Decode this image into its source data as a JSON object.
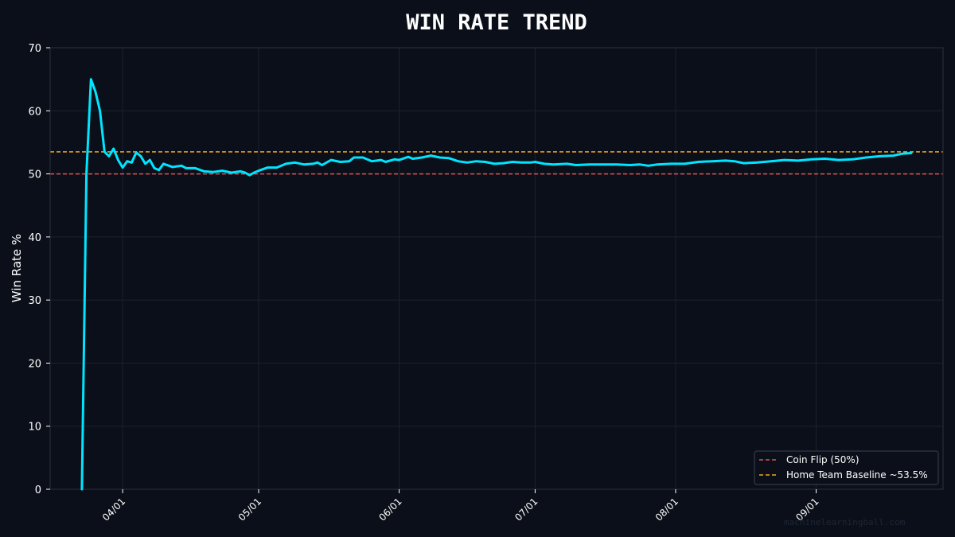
{
  "chart_data": {
    "type": "line",
    "title": "WIN RATE TREND",
    "xlabel": "",
    "ylabel": "Win Rate %",
    "ylim": [
      0,
      70
    ],
    "yticks": [
      0,
      10,
      20,
      30,
      40,
      50,
      60,
      70
    ],
    "xlim": [
      "2025-03-16",
      "2025-09-29"
    ],
    "xticks": [
      {
        "date": "2025-04-01",
        "label": "04/01"
      },
      {
        "date": "2025-05-01",
        "label": "05/01"
      },
      {
        "date": "2025-06-01",
        "label": "06/01"
      },
      {
        "date": "2025-07-01",
        "label": "07/01"
      },
      {
        "date": "2025-08-01",
        "label": "08/01"
      },
      {
        "date": "2025-09-01",
        "label": "09/01"
      }
    ],
    "grid": true,
    "legend_position": "bottom-right",
    "series": [
      {
        "color": "#00e5ff",
        "points": [
          [
            "2025-03-23",
            0.0
          ],
          [
            "2025-03-24",
            50.0
          ],
          [
            "2025-03-25",
            65.0
          ],
          [
            "2025-03-26",
            63.0
          ],
          [
            "2025-03-27",
            60.0
          ],
          [
            "2025-03-28",
            53.5
          ],
          [
            "2025-03-29",
            52.8
          ],
          [
            "2025-03-30",
            54.0
          ],
          [
            "2025-03-31",
            52.2
          ],
          [
            "2025-04-01",
            51.0
          ],
          [
            "2025-04-02",
            52.0
          ],
          [
            "2025-04-03",
            51.8
          ],
          [
            "2025-04-04",
            53.4
          ],
          [
            "2025-04-05",
            52.8
          ],
          [
            "2025-04-06",
            51.6
          ],
          [
            "2025-04-07",
            52.2
          ],
          [
            "2025-04-08",
            50.9
          ],
          [
            "2025-04-09",
            50.6
          ],
          [
            "2025-04-10",
            51.6
          ],
          [
            "2025-04-12",
            51.1
          ],
          [
            "2025-04-14",
            51.3
          ],
          [
            "2025-04-15",
            50.9
          ],
          [
            "2025-04-17",
            50.9
          ],
          [
            "2025-04-19",
            50.4
          ],
          [
            "2025-04-21",
            50.3
          ],
          [
            "2025-04-23",
            50.5
          ],
          [
            "2025-04-25",
            50.2
          ],
          [
            "2025-04-27",
            50.4
          ],
          [
            "2025-04-28",
            50.2
          ],
          [
            "2025-04-29",
            49.8
          ],
          [
            "2025-04-30",
            50.2
          ],
          [
            "2025-05-01",
            50.5
          ],
          [
            "2025-05-03",
            51.0
          ],
          [
            "2025-05-05",
            51.0
          ],
          [
            "2025-05-07",
            51.6
          ],
          [
            "2025-05-09",
            51.8
          ],
          [
            "2025-05-11",
            51.5
          ],
          [
            "2025-05-13",
            51.6
          ],
          [
            "2025-05-14",
            51.8
          ],
          [
            "2025-05-15",
            51.4
          ],
          [
            "2025-05-17",
            52.2
          ],
          [
            "2025-05-19",
            51.9
          ],
          [
            "2025-05-21",
            52.0
          ],
          [
            "2025-05-22",
            52.6
          ],
          [
            "2025-05-24",
            52.6
          ],
          [
            "2025-05-26",
            52.0
          ],
          [
            "2025-05-28",
            52.2
          ],
          [
            "2025-05-29",
            51.9
          ],
          [
            "2025-05-31",
            52.3
          ],
          [
            "2025-06-01",
            52.2
          ],
          [
            "2025-06-03",
            52.7
          ],
          [
            "2025-06-04",
            52.4
          ],
          [
            "2025-06-06",
            52.6
          ],
          [
            "2025-06-08",
            52.9
          ],
          [
            "2025-06-10",
            52.6
          ],
          [
            "2025-06-12",
            52.5
          ],
          [
            "2025-06-14",
            52.0
          ],
          [
            "2025-06-16",
            51.8
          ],
          [
            "2025-06-18",
            52.0
          ],
          [
            "2025-06-20",
            51.9
          ],
          [
            "2025-06-22",
            51.6
          ],
          [
            "2025-06-24",
            51.7
          ],
          [
            "2025-06-26",
            51.9
          ],
          [
            "2025-06-28",
            51.8
          ],
          [
            "2025-06-30",
            51.8
          ],
          [
            "2025-07-01",
            51.9
          ],
          [
            "2025-07-03",
            51.6
          ],
          [
            "2025-07-05",
            51.5
          ],
          [
            "2025-07-08",
            51.6
          ],
          [
            "2025-07-10",
            51.4
          ],
          [
            "2025-07-13",
            51.5
          ],
          [
            "2025-07-16",
            51.5
          ],
          [
            "2025-07-19",
            51.5
          ],
          [
            "2025-07-22",
            51.4
          ],
          [
            "2025-07-24",
            51.5
          ],
          [
            "2025-07-26",
            51.3
          ],
          [
            "2025-07-28",
            51.5
          ],
          [
            "2025-07-31",
            51.6
          ],
          [
            "2025-08-03",
            51.6
          ],
          [
            "2025-08-06",
            51.9
          ],
          [
            "2025-08-09",
            52.0
          ],
          [
            "2025-08-12",
            52.1
          ],
          [
            "2025-08-14",
            52.0
          ],
          [
            "2025-08-16",
            51.7
          ],
          [
            "2025-08-19",
            51.8
          ],
          [
            "2025-08-22",
            52.0
          ],
          [
            "2025-08-25",
            52.2
          ],
          [
            "2025-08-28",
            52.1
          ],
          [
            "2025-08-31",
            52.3
          ],
          [
            "2025-09-03",
            52.4
          ],
          [
            "2025-09-06",
            52.2
          ],
          [
            "2025-09-09",
            52.3
          ],
          [
            "2025-09-12",
            52.6
          ],
          [
            "2025-09-15",
            52.8
          ],
          [
            "2025-09-18",
            52.9
          ],
          [
            "2025-09-20",
            53.2
          ],
          [
            "2025-09-22",
            53.3
          ]
        ]
      }
    ],
    "reference_lines": [
      {
        "label": "Coin Flip (50%)",
        "y": 50,
        "color": "#e05252"
      },
      {
        "label": "Home Team Baseline ~53.5%",
        "y": 53.5,
        "color": "#f5a623"
      }
    ],
    "colors": {
      "background": "#0b0f19",
      "text": "#ffffff",
      "grid": "#1b2130",
      "axis": "#2b3140",
      "legend_bg": "#0b0f19",
      "legend_border": "#3a4050"
    }
  },
  "watermark": "machinelearningball.com"
}
